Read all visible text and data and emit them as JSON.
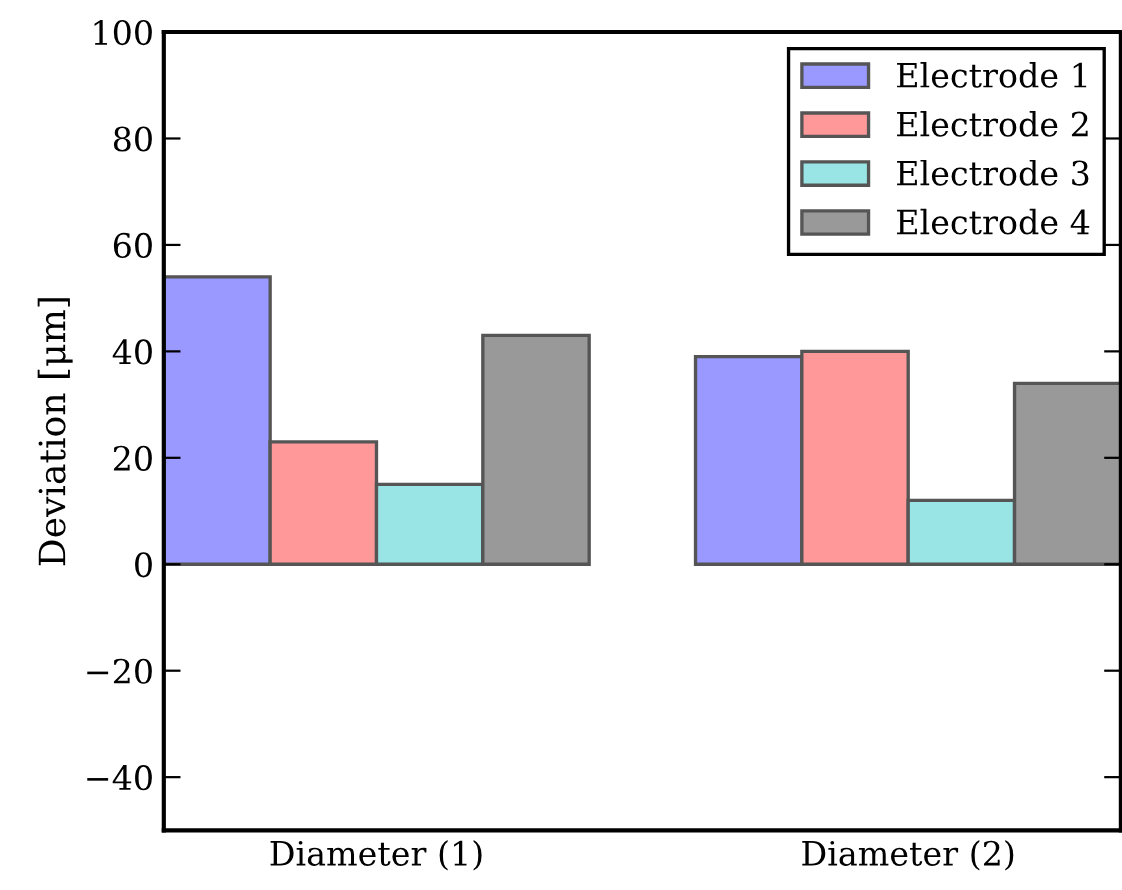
{
  "chart_data": {
    "type": "bar",
    "ylabel": "Deviation [μm]",
    "categories": [
      "Diameter (1)",
      "Diameter (2)"
    ],
    "series": [
      {
        "name": "Electrode 1",
        "color": "#9999ff",
        "values": [
          54,
          39
        ]
      },
      {
        "name": "Electrode 2",
        "color": "#ff9999",
        "values": [
          23,
          40
        ]
      },
      {
        "name": "Electrode 3",
        "color": "#99e5e5",
        "values": [
          15,
          12
        ]
      },
      {
        "name": "Electrode 4",
        "color": "#999999",
        "values": [
          43,
          34
        ]
      }
    ],
    "ylim": [
      -50,
      100
    ],
    "yticks": [
      {
        "value": -40,
        "label": "−40"
      },
      {
        "value": -20,
        "label": "−20"
      },
      0,
      20,
      40,
      60,
      80,
      100
    ],
    "legend": "top right",
    "grid": false
  }
}
